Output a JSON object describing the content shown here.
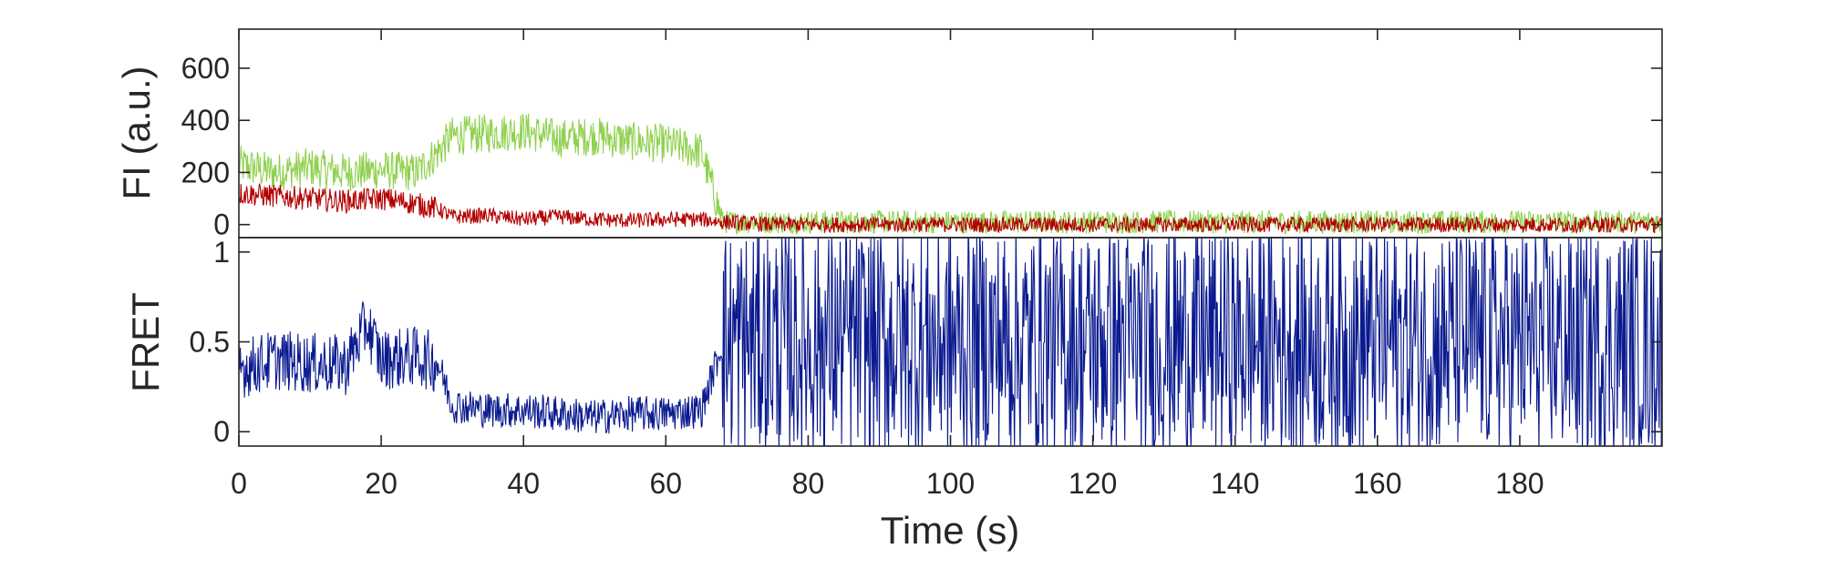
{
  "chart_data": [
    {
      "type": "line",
      "panel": "top",
      "ylabel": "FI (a.u.)",
      "xlim": [
        0,
        200
      ],
      "ylim": [
        -50,
        750
      ],
      "yticks": [
        0,
        200,
        400,
        600
      ],
      "ytick_labels": [
        "0",
        "200",
        "400",
        "600"
      ],
      "grid": false,
      "colors": {
        "donor": "#8fd14f",
        "acceptor": "#b30000"
      },
      "series": [
        {
          "color": "#8fd14f",
          "x": [
            0,
            5,
            10,
            15,
            20,
            25,
            28,
            30,
            35,
            40,
            45,
            50,
            55,
            60,
            65,
            68,
            75,
            100,
            125,
            150,
            175,
            200
          ],
          "values": [
            230,
            200,
            220,
            200,
            210,
            200,
            280,
            340,
            350,
            360,
            330,
            340,
            320,
            310,
            280,
            10,
            10,
            10,
            10,
            10,
            10,
            10
          ]
        },
        {
          "color": "#b30000",
          "x": [
            0,
            5,
            10,
            15,
            20,
            25,
            28,
            30,
            35,
            40,
            45,
            50,
            55,
            60,
            65,
            68,
            75,
            100,
            125,
            150,
            175,
            200
          ],
          "values": [
            120,
            110,
            100,
            90,
            100,
            80,
            60,
            30,
            35,
            20,
            30,
            20,
            15,
            20,
            20,
            10,
            0,
            0,
            0,
            0,
            0,
            0
          ]
        }
      ]
    },
    {
      "type": "line",
      "panel": "bottom",
      "xlabel": "Time (s)",
      "ylabel": "FRET",
      "xlim": [
        0,
        200
      ],
      "ylim": [
        -0.08,
        1.08
      ],
      "xticks": [
        0,
        20,
        40,
        60,
        80,
        100,
        120,
        140,
        160,
        180
      ],
      "xtick_labels": [
        "0",
        "20",
        "40",
        "60",
        "80",
        "100",
        "120",
        "140",
        "160",
        "180"
      ],
      "yticks": [
        0,
        0.5,
        1
      ],
      "ytick_labels": [
        "0",
        "0.5",
        "1"
      ],
      "grid": false,
      "series": [
        {
          "color": "#0a1a8f",
          "x": [
            0,
            5,
            10,
            15,
            18,
            20,
            25,
            28,
            30,
            35,
            40,
            45,
            50,
            55,
            60,
            65,
            68,
            75,
            100,
            125,
            150,
            175,
            200
          ],
          "values": [
            0.35,
            0.4,
            0.38,
            0.37,
            0.6,
            0.4,
            0.42,
            0.38,
            0.15,
            0.12,
            0.12,
            0.1,
            0.08,
            0.1,
            0.1,
            0.12,
            0.5,
            0.5,
            0.5,
            0.5,
            0.5,
            0.5,
            0.5
          ]
        }
      ]
    }
  ]
}
